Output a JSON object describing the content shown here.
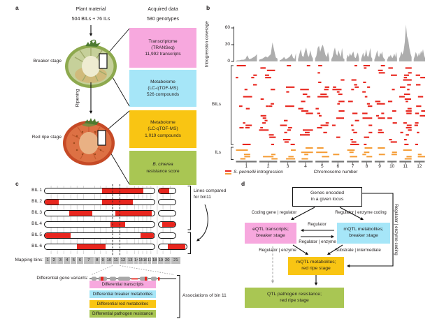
{
  "panels": {
    "a": "a",
    "b": "b",
    "c": "c",
    "d": "d"
  },
  "colors": {
    "pink": "#f7a8de",
    "cyan": "#a6e6f8",
    "yellow": "#f9c513",
    "green": "#a9c653",
    "red": "#e8261e",
    "orange": "#f59c35",
    "area_gray": "#adadad",
    "bin_gray": "#bdbdbd"
  },
  "panel_a": {
    "plant_material_title": "Plant material",
    "plant_material_subtitle": "504 BILs + 76 ILs",
    "acquired_data_title": "Acquired data",
    "acquired_data_subtitle": "580 genotypes",
    "breaker_label": "Breaker stage",
    "ripening_label": "Ripening",
    "red_ripe_label": "Red ripe stage",
    "boxes": [
      {
        "color_key": "pink",
        "lines": [
          "Transcriptome",
          "(TRANSeq)",
          "11,992 transcripts"
        ]
      },
      {
        "color_key": "cyan",
        "lines": [
          "Metabolome",
          "(LC-qTOF-MS)",
          "526 compounds"
        ]
      },
      {
        "color_key": "yellow",
        "lines": [
          "Metabolome",
          "(LC-qTOF-MS)",
          "1,019 compounds"
        ]
      },
      {
        "color_key": "green",
        "italic_line": "B. cinerea",
        "line": "resistance score"
      }
    ]
  },
  "panel_b": {
    "ylabel": "Introgression coverage",
    "bils_label": "BILs",
    "ils_label": "ILs",
    "xlabel": "Chromosome number",
    "legend_species": "S. pennellii",
    "legend_rest": " introgression"
  },
  "chart_data": {
    "type": "area",
    "title": "Introgression coverage along the 12 tomato chromosomes with BIL and IL introgression segments",
    "ylabel": "Introgression coverage",
    "xlabel": "Chromosome number",
    "ylim": [
      0,
      60
    ],
    "yticks": [
      0,
      30,
      60
    ],
    "grid": false,
    "legend_position": "bottom-left",
    "categories": [
      "1",
      "2",
      "3",
      "4",
      "5",
      "6",
      "7",
      "8",
      "9",
      "10",
      "11",
      "12"
    ],
    "column_weights": [
      1.5,
      1.3,
      1.15,
      1.05,
      1.0,
      0.92,
      0.88,
      0.78,
      0.75,
      0.7,
      0.88,
      0.8
    ],
    "series": [
      {
        "name": "Introgression coverage",
        "profiles": [
          [
            1,
            2,
            2,
            3,
            3,
            4,
            11,
            4,
            5,
            7,
            9,
            13
          ],
          [
            3,
            4,
            5,
            7,
            9,
            7,
            10,
            13,
            34,
            20,
            7,
            5
          ],
          [
            2,
            3,
            5,
            8,
            4,
            5,
            7,
            9,
            14,
            7,
            4,
            15
          ],
          [
            4,
            13,
            22,
            10,
            8,
            18,
            25,
            12,
            8,
            20,
            10,
            5
          ],
          [
            5,
            10,
            24,
            28,
            17,
            26,
            30,
            21,
            12,
            8,
            17,
            6
          ],
          [
            4,
            8,
            18,
            25,
            14,
            10,
            20,
            13,
            8,
            24,
            6,
            4
          ],
          [
            5,
            12,
            8,
            15,
            10,
            14,
            18,
            8,
            6,
            12,
            16,
            5
          ],
          [
            4,
            10,
            16,
            8,
            12,
            22,
            10,
            8,
            14,
            24,
            8,
            5
          ],
          [
            3,
            8,
            14,
            20,
            10,
            8,
            16,
            12,
            18,
            8,
            5,
            4
          ],
          [
            3,
            6,
            10,
            8,
            12,
            8,
            6,
            10,
            14,
            8,
            17,
            5
          ],
          [
            5,
            10,
            18,
            12,
            20,
            35,
            66,
            45,
            38,
            24,
            14,
            8
          ],
          [
            4,
            10,
            17,
            12,
            8,
            16,
            10,
            19,
            14,
            22,
            11,
            6
          ]
        ]
      }
    ],
    "heatmap": {
      "bil_rows": 34,
      "il_rows": 6,
      "seed": 7,
      "bil_color_key": "red",
      "il_color_key": "orange"
    }
  },
  "panel_c": {
    "rows": [
      {
        "label": "BIL 1",
        "c1": [
          [
            0.52,
            0.9
          ]
        ],
        "c2": [
          [
            0.0,
            0.62
          ]
        ],
        "c2w": 26
      },
      {
        "label": "BIL 2",
        "c1": [
          [
            0.0,
            0.13
          ],
          [
            0.52,
            0.8
          ]
        ],
        "c2": [],
        "c2w": 26
      },
      {
        "label": "BIL 3",
        "c1": [
          [
            0.22,
            0.43
          ],
          [
            0.645,
            0.975
          ]
        ],
        "c2": [],
        "c2w": 26
      },
      {
        "label": "BIL 4",
        "c1": [
          [
            0.6,
            0.73
          ]
        ],
        "c2": [
          [
            0.2,
            1.0
          ]
        ],
        "c2w": 26
      },
      {
        "label": "BIL 5",
        "c1": [
          [
            0.0,
            0.235
          ],
          [
            0.875,
            0.995
          ]
        ],
        "c2": [],
        "c2w": 26
      },
      {
        "label": "BIL 6",
        "c1": [
          [
            0.29,
            0.555
          ]
        ],
        "c2": [
          [
            0.33,
            0.95
          ]
        ],
        "c2w": 42
      }
    ],
    "compare_note_line1": "Lines compared",
    "compare_note_line2": "for bin11",
    "mapping_bins_label": "Mapping bins:",
    "bins": [
      "1",
      "2",
      "3",
      "4",
      "5",
      "6",
      "7",
      "8",
      "9",
      "10",
      "11",
      "12",
      "13",
      "14",
      "15",
      "16",
      "17",
      "18",
      "19",
      "20",
      "21"
    ],
    "bin_weights": [
      1,
      1,
      1,
      1.1,
      1,
      1,
      1.8,
      0.9,
      0.9,
      1,
      1.15,
      1.15,
      1.15,
      0.65,
      0.65,
      0.65,
      0.65,
      1,
      0.9,
      1.15,
      1.6
    ],
    "gene_variants_label": "Differential gene variants:",
    "assoc_boxes": [
      {
        "label": "Differential transcripts",
        "color_key": "pink"
      },
      {
        "label": "Differential breaker metabolites",
        "color_key": "cyan"
      },
      {
        "label": "Differential red metabolites",
        "color_key": "yellow"
      },
      {
        "label": "Differential pathogen resistance",
        "color_key": "green"
      }
    ],
    "assoc_label": "Associations of bin 11"
  },
  "panel_d": {
    "top_box": [
      "Genes encoded",
      "in a given locus"
    ],
    "pink_box": [
      "eQTL transcripts;",
      "breaker stage"
    ],
    "cyan_box": [
      "mQTL metabolites;",
      "breaker stage"
    ],
    "yellow_box": [
      "mQTL metabolites;",
      "red ripe stage"
    ],
    "green_box": [
      "QTL pathogen resistance;",
      "red ripe stage"
    ],
    "labels": {
      "coding_gene": "Coding gene | regulator",
      "regulator_enzyme_coding": "Regulator | enzyme coding",
      "regulator": "Regulator",
      "regulator_enzyme_mid": "Regulator | enzyme",
      "regulator_enzyme_left": "Regulator | enzyme",
      "substrate_intermediate": "Substrate | intermediate",
      "right_rail": "Regulator | enzyme coding"
    }
  }
}
